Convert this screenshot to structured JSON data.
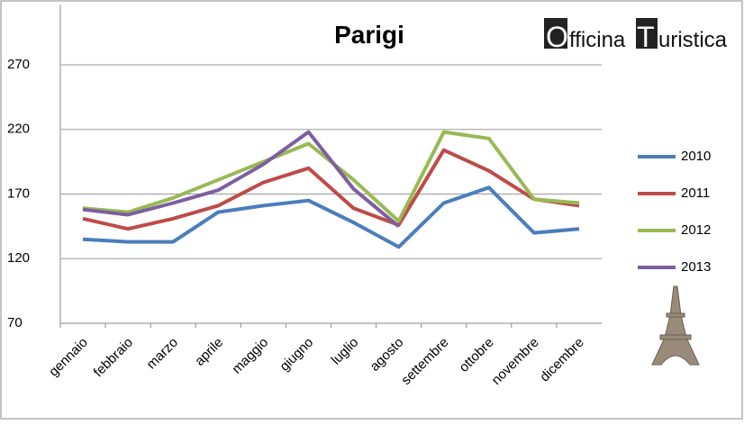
{
  "chart_data": {
    "type": "line",
    "title": "Parigi",
    "logo": [
      "O",
      "fficina",
      "T",
      "uristica"
    ],
    "categories": [
      "gennaio",
      "febbraio",
      "marzo",
      "aprile",
      "maggio",
      "giugno",
      "luglio",
      "agosto",
      "settembre",
      "ottobre",
      "novembre",
      "dicembre"
    ],
    "series": [
      {
        "name": "2010",
        "color": "#4a7ebb",
        "values": [
          135,
          133,
          133,
          156,
          161,
          165,
          148,
          129,
          163,
          175,
          140,
          143
        ]
      },
      {
        "name": "2011",
        "color": "#be4b48",
        "values": [
          151,
          143,
          151,
          161,
          179,
          190,
          159,
          146,
          204,
          188,
          166,
          161
        ]
      },
      {
        "name": "2012",
        "color": "#98b954",
        "values": [
          159,
          156,
          167,
          181,
          195,
          209,
          181,
          149,
          218,
          213,
          166,
          163
        ]
      },
      {
        "name": "2013",
        "color": "#7d5fa0",
        "values": [
          158,
          154,
          163,
          173,
          193,
          218,
          174,
          145,
          null,
          null,
          null,
          null
        ]
      }
    ],
    "ylim": [
      70,
      315
    ],
    "yticks": [
      70,
      120,
      170,
      220,
      270
    ],
    "grid": true
  }
}
